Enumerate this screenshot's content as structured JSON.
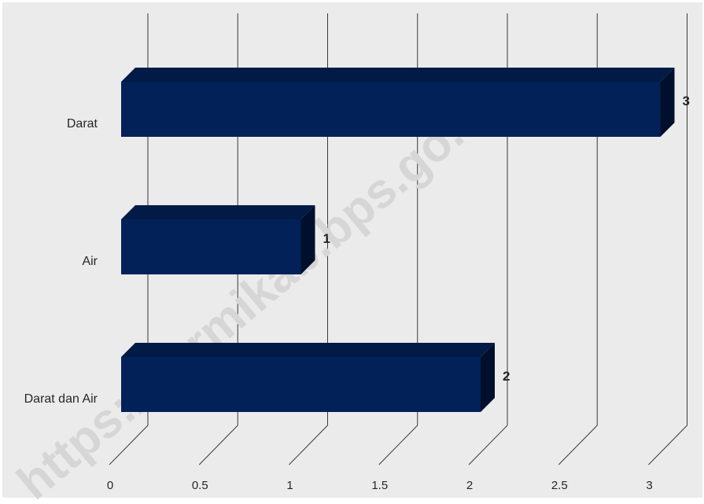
{
  "watermark": "https://sarmikab.bps.go.id",
  "colors": {
    "background": "#ebebeb",
    "bar_front": "#012158",
    "bar_top": "#011a46",
    "bar_side": "#000f2c",
    "grid": "#3a3a3a",
    "text": "#262626",
    "watermark": "#d6d6d6"
  },
  "chart_data": {
    "type": "bar",
    "orientation": "horizontal",
    "style": "3d",
    "title": "",
    "xlabel": "",
    "ylabel": "",
    "categories": [
      "Darat",
      "Air",
      "Darat dan Air"
    ],
    "values": [
      3,
      1,
      2
    ],
    "data_labels": [
      "3",
      "1",
      "2"
    ],
    "x_ticks": [
      "0",
      "0.5",
      "1",
      "1.5",
      "2",
      "2.5",
      "3"
    ],
    "xlim": [
      0,
      3
    ],
    "grid": true,
    "legend": "none"
  }
}
